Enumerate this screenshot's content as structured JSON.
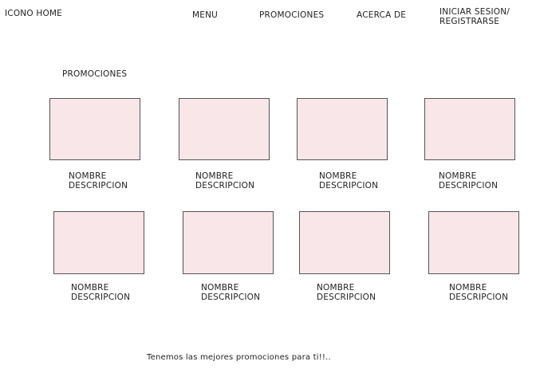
{
  "header": {
    "logo": "ICONO HOME",
    "nav": {
      "menu": "MENU",
      "promociones": "PROMOCIONES",
      "acerca": "ACERCA DE",
      "login_line1": "INICIAR SESION/",
      "login_line2": "REGISTRARSE"
    }
  },
  "section": {
    "title": "PROMOCIONES"
  },
  "cards": [
    {
      "name": "NOMBRE",
      "description": "DESCRIPCION"
    },
    {
      "name": "NOMBRE",
      "description": "DESCRIPCION"
    },
    {
      "name": "NOMBRE",
      "description": "DESCRIPCION"
    },
    {
      "name": "NOMBRE",
      "description": "DESCRIPCION"
    },
    {
      "name": "NOMBRE",
      "description": "DESCRIPCION"
    },
    {
      "name": "NOMBRE",
      "description": "DESCRIPCION"
    },
    {
      "name": "NOMBRE",
      "description": "DESCRIPCION"
    },
    {
      "name": "NOMBRE",
      "description": "DESCRIPCION"
    }
  ],
  "footer": {
    "tagline": "Tenemos las mejores promociones para ti!!.."
  },
  "colors": {
    "card_fill": "#f9e6e8",
    "card_border": "#555555",
    "text": "#222222",
    "background": "#ffffff"
  }
}
